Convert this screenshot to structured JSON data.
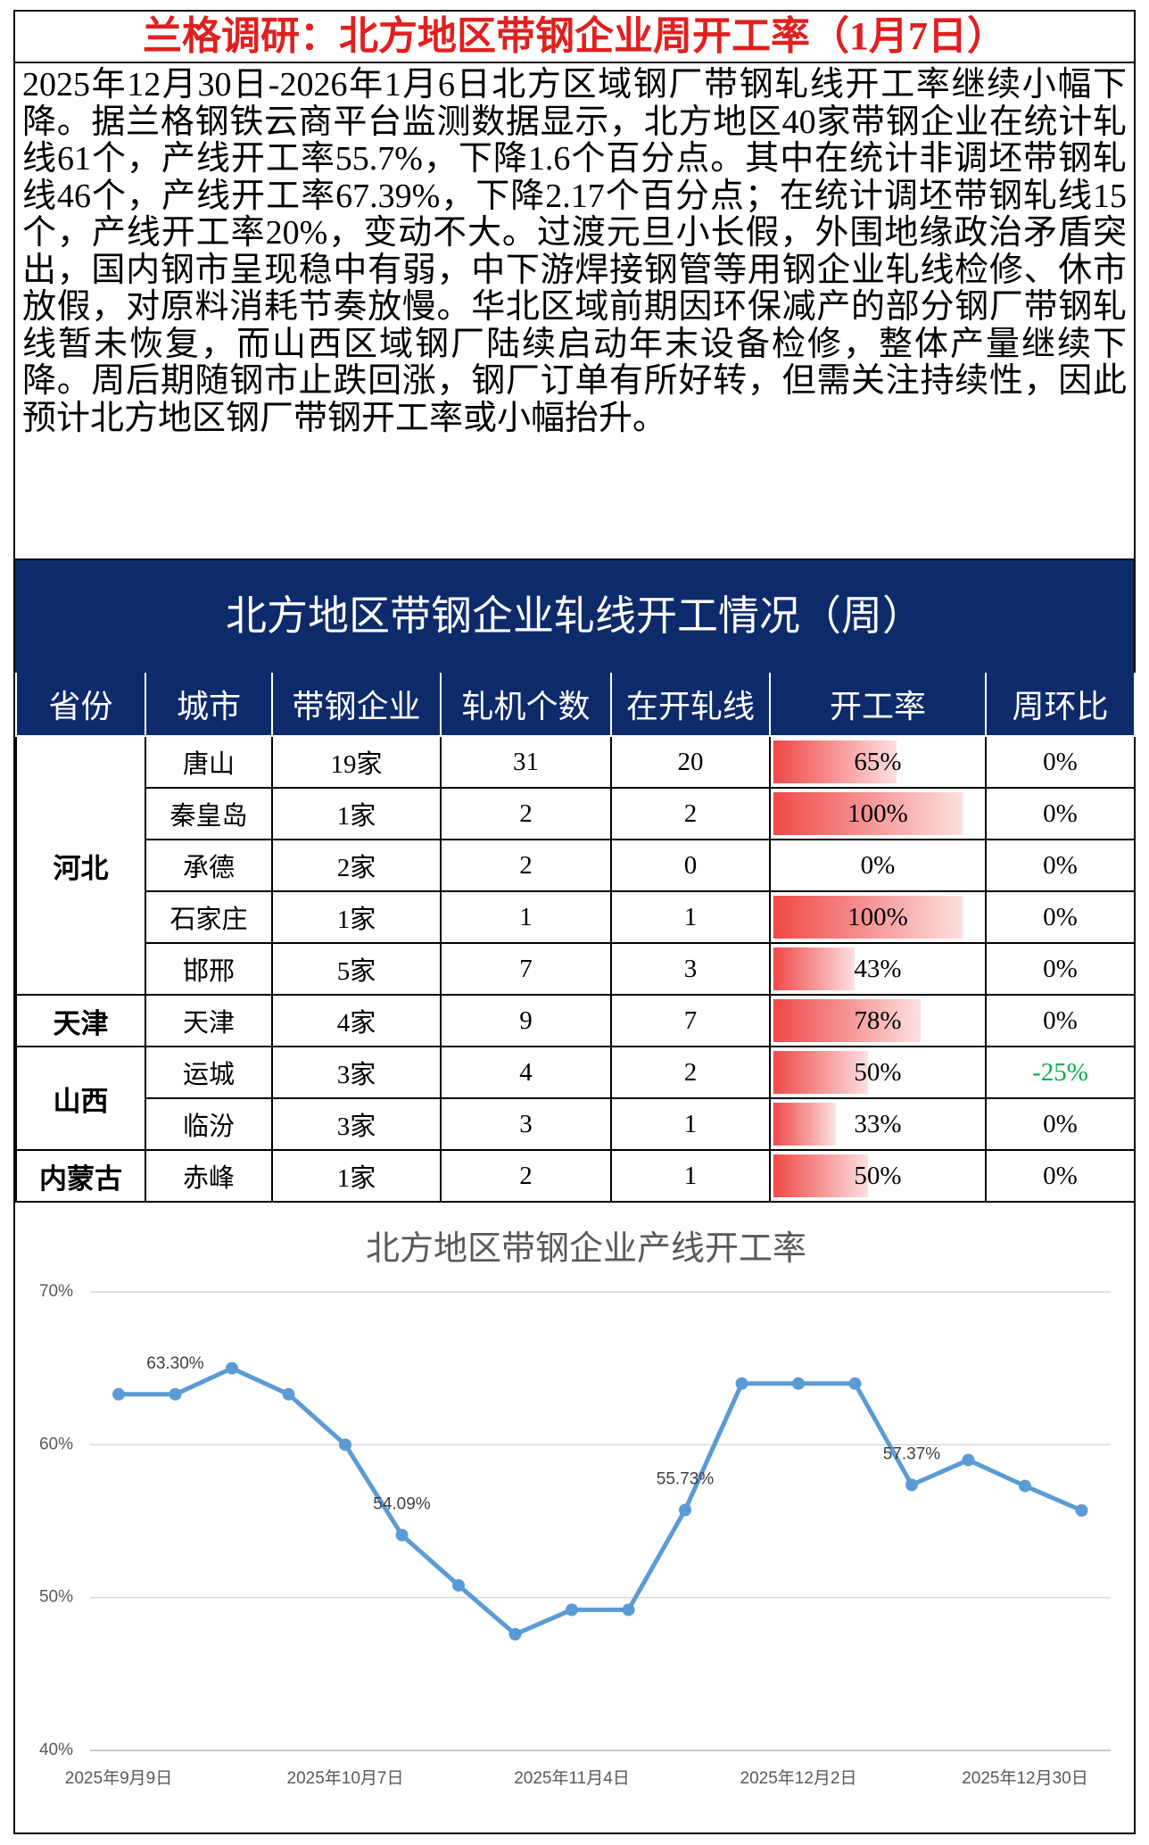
{
  "header": {
    "title": "兰格调研：北方地区带钢企业周开工率（1月7日）"
  },
  "body": {
    "text": "2025年12月30日-2026年1月6日北方区域钢厂带钢轧线开工率继续小幅下降。据兰格钢铁云商平台监测数据显示，北方地区40家带钢企业在统计轧线61个，产线开工率55.7%，下降1.6个百分点。其中在统计非调坯带钢轧线46个，产线开工率67.39%，下降2.17个百分点；在统计调坯带钢轧线15个，产线开工率20%，变动不大。过渡元旦小长假，外围地缘政治矛盾突出，国内钢市呈现稳中有弱，中下游焊接钢管等用钢企业轧线检修、休市放假，对原料消耗节奏放慢。华北区域前期因环保减产的部分钢厂带钢轧线暂未恢复，而山西区域钢厂陆续启动年末设备检修，整体产量继续下降。周后期随钢市止跌回涨，钢厂订单有所好转，但需关注持续性，因此预计北方地区钢厂带钢开工率或小幅抬升。"
  },
  "table": {
    "title": "北方地区带钢企业轧线开工情况（周）",
    "headers": [
      "省份",
      "城市",
      "带钢企业",
      "轧机个数",
      "在开轧线",
      "开工率",
      "周环比"
    ],
    "groups": [
      {
        "province": "河北",
        "rows": [
          {
            "city": "唐山",
            "companies": "19家",
            "mills": 31,
            "running": 20,
            "rate": 65,
            "rate_label": "65%",
            "wow": "0%"
          },
          {
            "city": "秦皇岛",
            "companies": "1家",
            "mills": 2,
            "running": 2,
            "rate": 100,
            "rate_label": "100%",
            "wow": "0%"
          },
          {
            "city": "承德",
            "companies": "2家",
            "mills": 2,
            "running": 0,
            "rate": 0,
            "rate_label": "0%",
            "wow": "0%"
          },
          {
            "city": "石家庄",
            "companies": "1家",
            "mills": 1,
            "running": 1,
            "rate": 100,
            "rate_label": "100%",
            "wow": "0%"
          },
          {
            "city": "邯邢",
            "companies": "5家",
            "mills": 7,
            "running": 3,
            "rate": 43,
            "rate_label": "43%",
            "wow": "0%"
          }
        ]
      },
      {
        "province": "天津",
        "rows": [
          {
            "city": "天津",
            "companies": "4家",
            "mills": 9,
            "running": 7,
            "rate": 78,
            "rate_label": "78%",
            "wow": "0%"
          }
        ]
      },
      {
        "province": "山西",
        "rows": [
          {
            "city": "运城",
            "companies": "3家",
            "mills": 4,
            "running": 2,
            "rate": 50,
            "rate_label": "50%",
            "wow": "-25%",
            "wow_color": "#00b050"
          },
          {
            "city": "临汾",
            "companies": "3家",
            "mills": 3,
            "running": 1,
            "rate": 33,
            "rate_label": "33%",
            "wow": "0%"
          }
        ]
      },
      {
        "province": "内蒙古",
        "rows": [
          {
            "city": "赤峰",
            "companies": "1家",
            "mills": 2,
            "running": 1,
            "rate": 50,
            "rate_label": "50%",
            "wow": "0%"
          }
        ]
      }
    ]
  },
  "chart_data": {
    "type": "line",
    "title": "北方地区带钢企业产线开工率",
    "categories": [
      "2025年9月9日",
      null,
      null,
      null,
      "2025年10月7日",
      null,
      null,
      null,
      "2025年11月4日",
      null,
      null,
      null,
      "2025年12月2日",
      null,
      null,
      null,
      "2025年12月30日",
      null
    ],
    "series": [
      {
        "name": "产线开工率",
        "color": "#5b9bd5",
        "values": [
          63.3,
          63.3,
          65.0,
          63.3,
          60.0,
          54.09,
          50.8,
          47.6,
          49.2,
          49.2,
          55.73,
          64.0,
          64.0,
          64.0,
          57.37,
          59.0,
          57.3,
          55.7
        ],
        "value_labels": [
          null,
          "63.30%",
          null,
          null,
          null,
          "54.09%",
          null,
          null,
          null,
          null,
          "55.73%",
          null,
          null,
          null,
          "57.37%",
          null,
          null,
          null
        ]
      }
    ],
    "ylim": [
      40,
      70
    ],
    "yticks": [
      {
        "value": 40,
        "label": "40%"
      },
      {
        "value": 50,
        "label": "50%"
      },
      {
        "value": 60,
        "label": "60%"
      },
      {
        "value": 70,
        "label": "70%"
      }
    ],
    "grid": true
  }
}
